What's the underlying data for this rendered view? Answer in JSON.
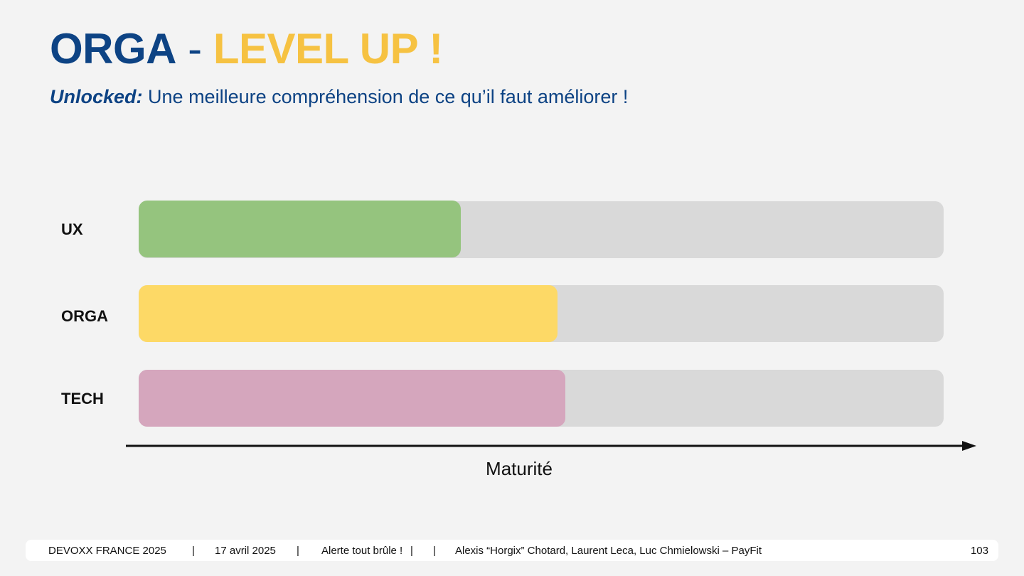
{
  "slide": {
    "title_part1": "ORGA",
    "title_sep": " - ",
    "title_part2": "LEVEL UP !",
    "subtitle_lead": "Unlocked:",
    "subtitle_rest": " Une meilleure compréhension de ce qu’il faut améliorer !"
  },
  "chart_data": {
    "type": "bar",
    "orientation": "horizontal",
    "categories": [
      "UX",
      "ORGA",
      "TECH"
    ],
    "values": [
      0.4,
      0.52,
      0.53
    ],
    "xlabel": "Maturité",
    "xlim": [
      0,
      1
    ],
    "grid": false,
    "legend": "none",
    "colors": [
      "#95c47e",
      "#fdd966",
      "#d5a6bd"
    ],
    "track_color": "#d9d9d9"
  },
  "footer": {
    "event": "DEVOXX FRANCE 2025",
    "sep1": "|",
    "date": "17 avril 2025",
    "sep2": "|",
    "talk": "Alerte tout brûle !",
    "sep3": "|",
    "sep4": "|",
    "authors": "Alexis “Horgix” Chotard, Laurent Leca, Luc Chmielowski – PayFit",
    "page": "103"
  },
  "colors": {
    "title_blue": "#0d4384",
    "title_yellow": "#f6c242",
    "background": "#f3f3f3"
  }
}
